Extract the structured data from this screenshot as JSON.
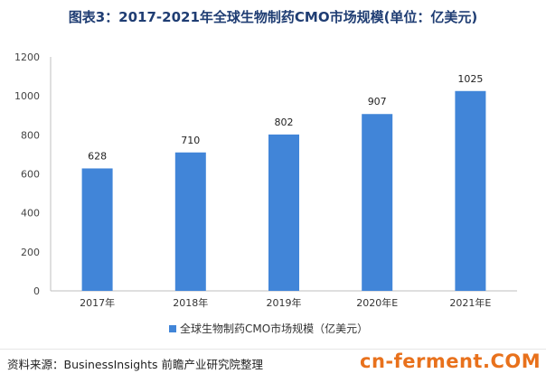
{
  "title": "图表3：2017-2021年全球生物制药CMO市场规模(单位：亿美元)",
  "source": "资料来源：BusinessInsights 前瞻产业研究院整理",
  "site_mark": "cn-ferment.COM",
  "colors": {
    "bar": "#4185d8",
    "title": "#1f3d73",
    "grid": "#d9d9d9",
    "site": "#e8711c"
  },
  "chart_data": {
    "type": "bar",
    "title": "图表3：2017-2021年全球生物制药CMO市场规模(单位：亿美元)",
    "categories": [
      "2017年",
      "2018年",
      "2019年",
      "2020年E",
      "2021年E"
    ],
    "series": [
      {
        "name": "全球生物制药CMO市场规模（亿美元）",
        "values": [
          628,
          710,
          802,
          907,
          1025
        ]
      }
    ],
    "yticks": [
      "0",
      "200",
      "400",
      "600",
      "800",
      "1000",
      "1200"
    ],
    "ylim": [
      0,
      1200
    ],
    "grid": false,
    "legend": "bottom"
  }
}
